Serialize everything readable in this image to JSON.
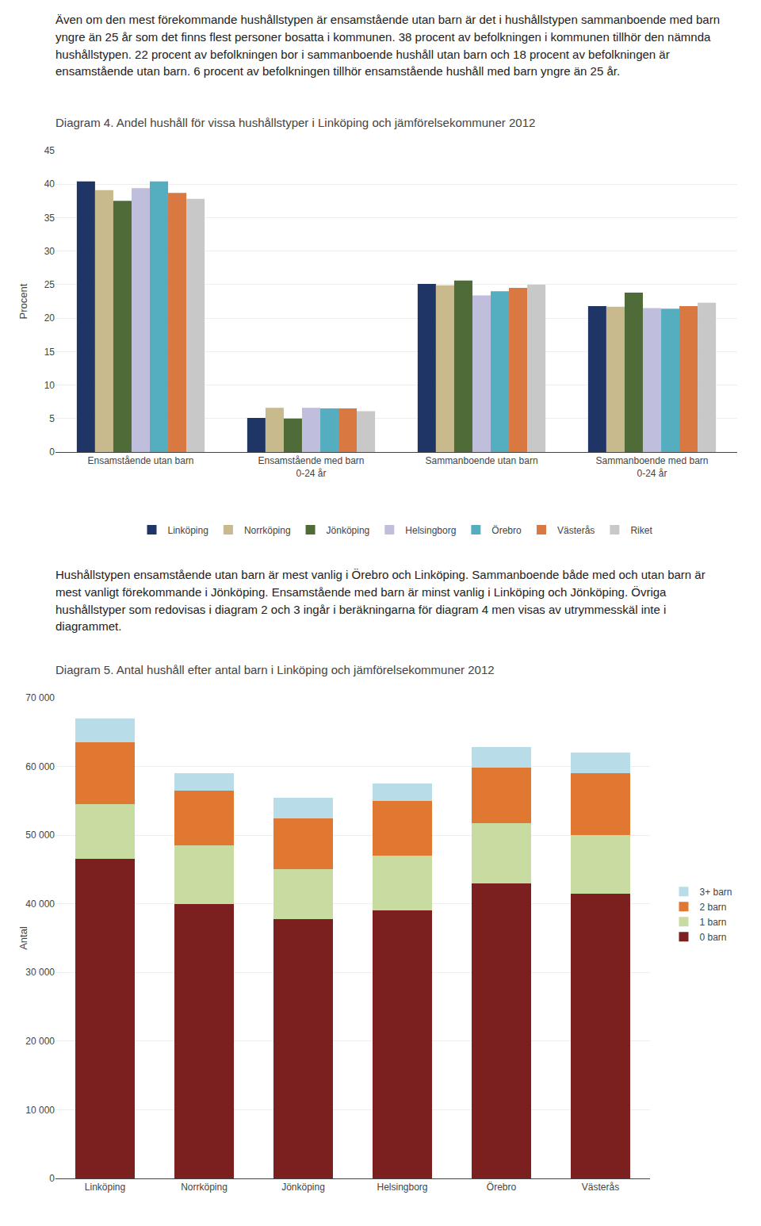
{
  "chart_data": [
    {
      "type": "bar",
      "annotations": [
        "Även om den mest förekommande hushållstypen är ensamstående utan barn är det i hushållstypen sammanboende med barn yngre än 25 år som det finns flest personer bosatta i kommunen. 38 procent av befolkningen i kommunen tillhör den nämnda hushållstypen. 22 procent av befolkningen bor i sammanboende hushåll utan barn och 18 procent av befolkningen är ensamstående utan barn. 6 procent av befolkningen tillhör ensamstående hushåll med barn yngre än 25 år."
      ],
      "title": "Diagram 4. Andel hushåll för vissa hushållstyper i Linköping och jämförelsekommuner 2012",
      "ylabel": "Procent",
      "categories": [
        "Ensamstående utan barn",
        "Ensamstående med barn\n0-24 år",
        "Sammanboende utan barn",
        "Sammanboende med barn\n0-24 år"
      ],
      "series": [
        {
          "name": "Linköping",
          "color": "#1f3566",
          "values": [
            40.4,
            5.1,
            25.1,
            21.8
          ]
        },
        {
          "name": "Norrköping",
          "color": "#c8ba8c",
          "values": [
            39.1,
            6.6,
            24.9,
            21.7
          ]
        },
        {
          "name": "Jönköping",
          "color": "#4e6b38",
          "values": [
            37.5,
            5.0,
            25.6,
            23.8
          ]
        },
        {
          "name": "Helsingborg",
          "color": "#c0bedd",
          "values": [
            39.4,
            6.6,
            23.4,
            21.5
          ]
        },
        {
          "name": "Örebro",
          "color": "#55aec0",
          "values": [
            40.4,
            6.5,
            24.0,
            21.4
          ]
        },
        {
          "name": "Västerås",
          "color": "#d97840",
          "values": [
            38.7,
            6.5,
            24.5,
            21.8
          ]
        },
        {
          "name": "Riket",
          "color": "#c8c8c8",
          "values": [
            37.8,
            6.1,
            25.0,
            22.3
          ]
        }
      ],
      "ylim": [
        0,
        45
      ],
      "yticks": [
        0,
        5,
        10,
        15,
        20,
        25,
        30,
        35,
        40,
        45
      ],
      "grid": true,
      "legend": "bottom"
    },
    {
      "type": "bar",
      "stacked": true,
      "annotations": [
        "Hushållstypen ensamstående utan barn är mest vanlig i Örebro och Linköping. Sammanboende både med och utan barn är mest vanligt förekommande i Jönköping. Ensamstående med barn är minst vanlig i Linköping och Jönköping. Övriga hushållstyper som redovisas i diagram 2 och 3 ingår i beräkningarna för diagram 4 men visas av utrymmesskäl inte i diagrammet."
      ],
      "title": "Diagram 5. Antal hushåll efter antal barn i Linköping och jämförelsekommuner 2012",
      "ylabel": "Antal",
      "categories": [
        "Linköping",
        "Norrköping",
        "Jönköping",
        "Helsingborg",
        "Örebro",
        "Västerås"
      ],
      "series": [
        {
          "name": "0 barn",
          "color": "#7b1f1f",
          "values": [
            46500,
            40000,
            37800,
            39000,
            43000,
            41500
          ]
        },
        {
          "name": "1 barn",
          "color": "#c8dba0",
          "values": [
            8000,
            8500,
            7200,
            8000,
            8800,
            8500
          ]
        },
        {
          "name": "2 barn",
          "color": "#e07832",
          "values": [
            9000,
            8000,
            7500,
            8000,
            8000,
            9000
          ]
        },
        {
          "name": "3+ barn",
          "color": "#b8dce8",
          "values": [
            3500,
            2500,
            3000,
            2500,
            3000,
            3000
          ]
        }
      ],
      "ylim": [
        0,
        70000
      ],
      "yticks": [
        0,
        {
          "value": 10000,
          "label": "10 000"
        },
        {
          "value": 20000,
          "label": "20 000"
        },
        {
          "value": 30000,
          "label": "30 000"
        },
        {
          "value": 40000,
          "label": "40 000"
        },
        {
          "value": 50000,
          "label": "50 000"
        },
        {
          "value": 60000,
          "label": "60 000"
        },
        {
          "value": 70000,
          "label": "70 000"
        }
      ],
      "grid": true,
      "legend": "right"
    }
  ]
}
